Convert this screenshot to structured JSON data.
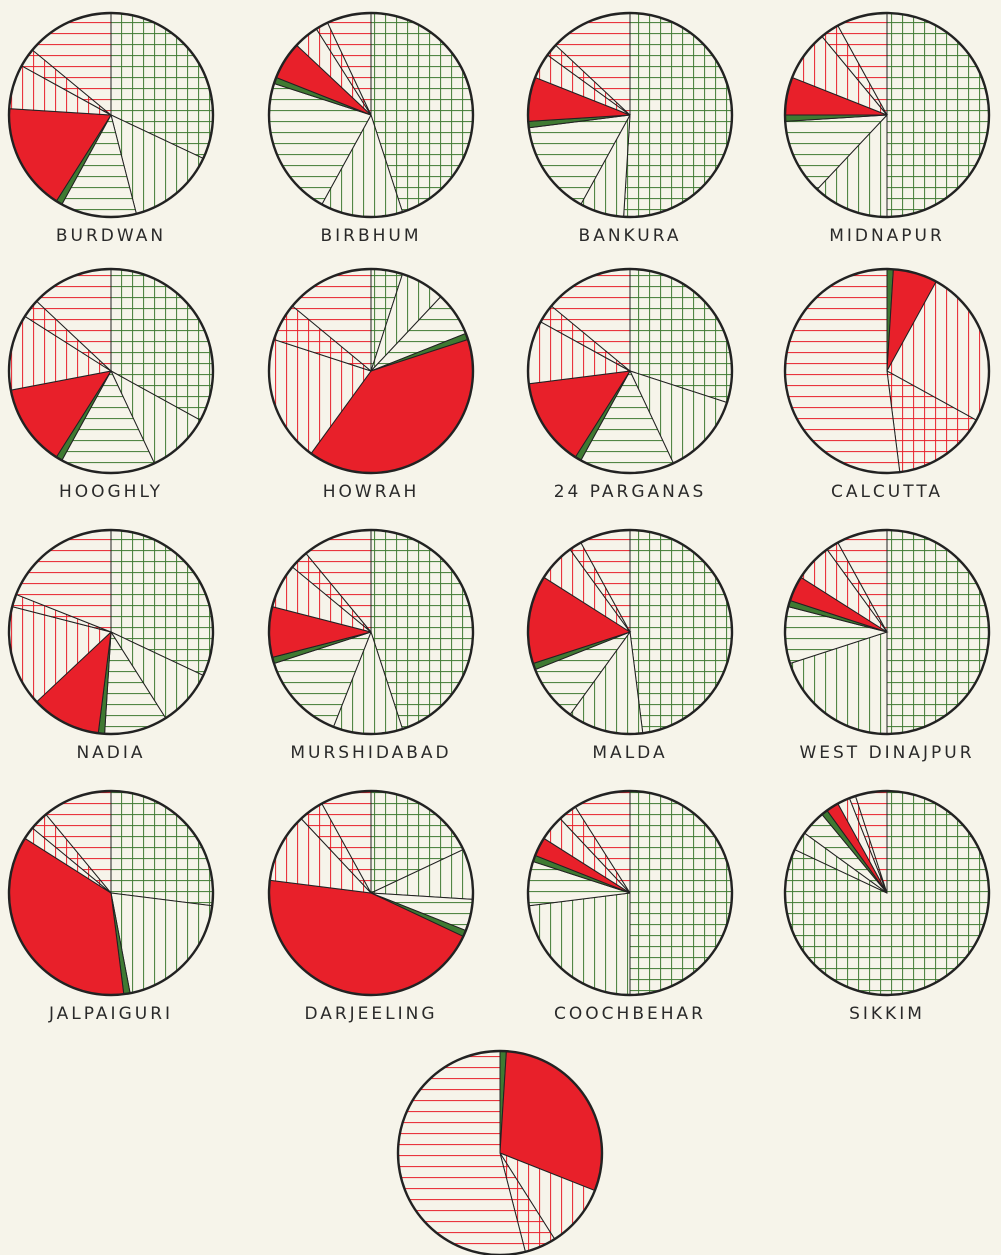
{
  "chart_data": {
    "type": "pie",
    "title": "",
    "colors": {
      "green": "#3f7a32",
      "red": "#e8202a",
      "outline": "#222222",
      "paper": "#f6f4ea"
    },
    "pattern_legend": [
      "green-crosshatch",
      "green-vertical",
      "green-horizontal",
      "green-solid",
      "red-solid",
      "red-vertical",
      "red-crosshatch",
      "red-horizontal"
    ],
    "charts": [
      {
        "label": "BURDWAN",
        "values": [
          32,
          14,
          12,
          1,
          17,
          7,
          3,
          14
        ]
      },
      {
        "label": "BIRBHUM",
        "values": [
          45,
          13,
          22,
          1,
          6,
          4,
          2,
          7
        ]
      },
      {
        "label": "BANKURA",
        "values": [
          51,
          7,
          15,
          1,
          7,
          4,
          2,
          13
        ]
      },
      {
        "label": "MIDNAPUR",
        "values": [
          50,
          12,
          12,
          1,
          6,
          8,
          3,
          8
        ]
      },
      {
        "label": "HOOGHLY",
        "values": [
          33,
          10,
          15,
          1,
          13,
          12,
          3,
          13
        ]
      },
      {
        "label": "HOWRAH",
        "values": [
          5,
          7,
          7,
          1,
          40,
          20,
          6,
          14
        ]
      },
      {
        "label": "24 PARGANAS",
        "values": [
          30,
          13,
          15,
          1,
          14,
          10,
          3,
          14
        ]
      },
      {
        "label": "CALCUTTA",
        "values": [
          0,
          0,
          0,
          1,
          7,
          25,
          15,
          52
        ]
      },
      {
        "label": "NADIA",
        "values": [
          32,
          9,
          10,
          1,
          11,
          16,
          2,
          19
        ]
      },
      {
        "label": "MURSHIDABAD",
        "values": [
          45,
          11,
          14,
          1,
          8,
          7,
          3,
          11
        ]
      },
      {
        "label": "MALDA",
        "values": [
          48,
          12,
          9,
          1,
          14,
          6,
          2,
          8
        ]
      },
      {
        "label": "WEST DINAJPUR",
        "values": [
          50,
          20,
          9,
          1,
          4,
          6,
          2,
          8
        ]
      },
      {
        "label": "JALPAIGURI",
        "values": [
          27,
          20,
          0,
          1,
          36,
          2,
          3,
          11
        ]
      },
      {
        "label": "DARJEELING",
        "values": [
          18,
          8,
          5,
          1,
          45,
          11,
          4,
          8
        ]
      },
      {
        "label": "COOCHBEHAR",
        "values": [
          50,
          23,
          7,
          1,
          3,
          4,
          3,
          9
        ]
      },
      {
        "label": "SIKKIM",
        "values": [
          82,
          3,
          4,
          1,
          2,
          2,
          1,
          5
        ]
      },
      {
        "label": "",
        "values": [
          0,
          0,
          0,
          1,
          30,
          10,
          5,
          54
        ]
      }
    ]
  }
}
